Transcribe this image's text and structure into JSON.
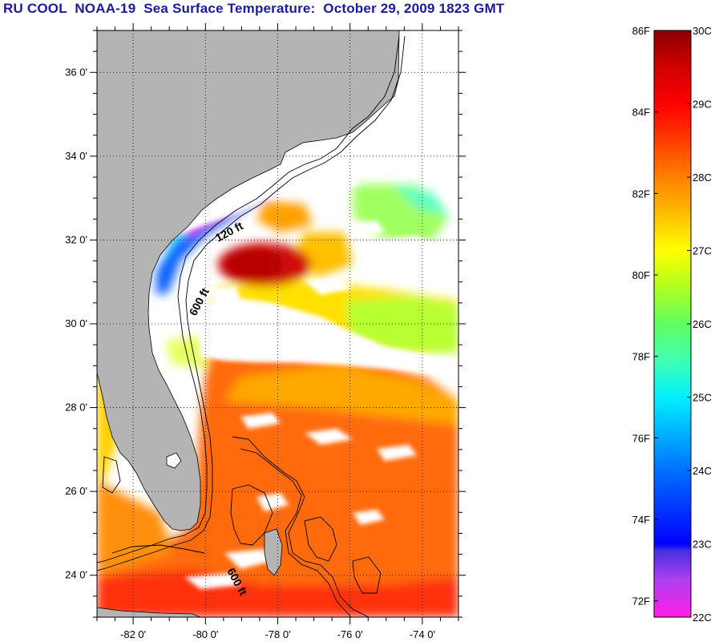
{
  "title": "RU COOL  NOAA-19  Sea Surface Temperature:  October 29, 2009 1823 GMT",
  "map": {
    "lat_range": [
      23,
      37
    ],
    "lon_range": [
      -83,
      -73
    ],
    "lat_tick_labels": [
      "36 0'",
      "34 0'",
      "32 0'",
      "30 0'",
      "28 0'",
      "26 0'",
      "24 0'"
    ],
    "lon_tick_labels": [
      "-82 0'",
      "-80 0'",
      "-78 0'",
      "-76 0'",
      "-74 0'"
    ],
    "contour_labels": [
      "120 ft",
      "600 ft",
      "600 ft"
    ],
    "colors": {
      "land": "#b4b4b4",
      "cloud": "#ffffff",
      "frame": "#000000"
    }
  },
  "colorbar": {
    "fahrenheit_labels": [
      "86F",
      "84F",
      "82F",
      "80F",
      "78F",
      "76F",
      "74F",
      "72F"
    ],
    "celsius_labels": [
      "30C",
      "29C",
      "28C",
      "27C",
      "26C",
      "25C",
      "24C",
      "23C",
      "22C"
    ],
    "range_c": [
      22,
      30
    ],
    "stops": [
      {
        "c": 22.0,
        "color": "#ff1ee6"
      },
      {
        "c": 22.5,
        "color": "#b040f0"
      },
      {
        "c": 22.9,
        "color": "#4a30e0"
      },
      {
        "c": 23.0,
        "color": "#0000ff"
      },
      {
        "c": 24.0,
        "color": "#0070ff"
      },
      {
        "c": 25.0,
        "color": "#00f0ff"
      },
      {
        "c": 25.5,
        "color": "#40ffb0"
      },
      {
        "c": 26.0,
        "color": "#60ff60"
      },
      {
        "c": 26.5,
        "color": "#b0ff20"
      },
      {
        "c": 27.0,
        "color": "#ffff00"
      },
      {
        "c": 27.6,
        "color": "#ffb000"
      },
      {
        "c": 28.0,
        "color": "#ff8000"
      },
      {
        "c": 28.6,
        "color": "#ff3000"
      },
      {
        "c": 29.0,
        "color": "#ff0000"
      },
      {
        "c": 29.5,
        "color": "#d00000"
      },
      {
        "c": 30.0,
        "color": "#8c0000"
      }
    ]
  }
}
